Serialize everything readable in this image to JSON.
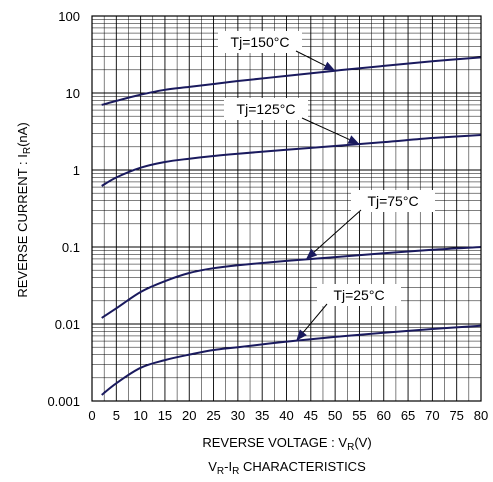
{
  "chart_data": {
    "type": "line",
    "title": "",
    "caption": {
      "main": "V",
      "sub1": "R",
      "mid": "-I",
      "sub2": "R",
      "tail": " CHARACTERISTICS"
    },
    "xlabel": {
      "main": "REVERSE VOLTAGE : V",
      "sub": "R",
      "tail": "(V)"
    },
    "ylabel": {
      "main": "REVERSE CURRENT : I",
      "sub": "R",
      "tail": "(nA)"
    },
    "x_scale": "linear",
    "y_scale": "log",
    "xlim": [
      0,
      80
    ],
    "ylim": [
      0.001,
      100
    ],
    "grid": true,
    "x_ticks": [
      "0",
      "5",
      "10",
      "15",
      "20",
      "25",
      "30",
      "35",
      "40",
      "45",
      "50",
      "55",
      "60",
      "65",
      "70",
      "75",
      "80"
    ],
    "y_ticks": [
      "0.001",
      "0.01",
      "0.1",
      "1",
      "10",
      "100"
    ],
    "series": [
      {
        "name": "Tj=150°C",
        "color": "#1a1a5e",
        "x": [
          2,
          5,
          10,
          15,
          20,
          25,
          30,
          40,
          50,
          60,
          70,
          80
        ],
        "y": [
          7,
          7.9,
          9.5,
          11,
          12,
          13.1,
          14.3,
          16.7,
          19.5,
          22.5,
          25.8,
          29
        ]
      },
      {
        "name": "Tj=125°C",
        "color": "#1a1a5e",
        "x": [
          2,
          5,
          10,
          15,
          20,
          25,
          30,
          40,
          50,
          60,
          70,
          80
        ],
        "y": [
          0.62,
          0.8,
          1.07,
          1.27,
          1.4,
          1.52,
          1.63,
          1.83,
          2.05,
          2.3,
          2.6,
          2.85
        ]
      },
      {
        "name": "Tj=75°C",
        "color": "#1a1a5e",
        "x": [
          2,
          5,
          10,
          15,
          20,
          25,
          30,
          40,
          50,
          60,
          70,
          80
        ],
        "y": [
          0.012,
          0.016,
          0.026,
          0.036,
          0.046,
          0.053,
          0.058,
          0.066,
          0.074,
          0.083,
          0.092,
          0.1
        ]
      },
      {
        "name": "Tj=25°C",
        "color": "#1a1a5e",
        "x": [
          2,
          5,
          10,
          15,
          20,
          25,
          30,
          40,
          50,
          60,
          70,
          80
        ],
        "y": [
          0.0012,
          0.0017,
          0.0027,
          0.0034,
          0.004,
          0.0046,
          0.005,
          0.0059,
          0.0068,
          0.0077,
          0.0086,
          0.0095
        ]
      }
    ],
    "annotations": [
      {
        "text": "Tj=150°C",
        "series": 0,
        "arrow_x": 50
      },
      {
        "text": "Tj=125°C",
        "series": 1,
        "arrow_x": 55
      },
      {
        "text": "Tj=75°C",
        "series": 2,
        "arrow_x": 44
      },
      {
        "text": "Tj=25°C",
        "series": 3,
        "arrow_x": 42
      }
    ]
  }
}
